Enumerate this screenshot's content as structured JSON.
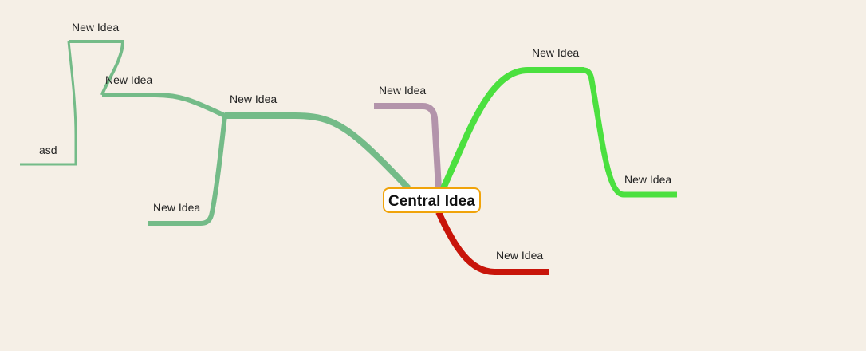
{
  "central": {
    "label": "Central Idea",
    "border_color": "#f0a30a"
  },
  "colors": {
    "background": "#f5efe6",
    "branch_light_green": "#74bb88",
    "branch_purple": "#b394ab",
    "branch_bright_green": "#4be03f",
    "branch_red": "#c8150a"
  },
  "nodes": {
    "far_left": "asd",
    "top_left": "New Idea",
    "left_upper": "New Idea",
    "left_mid": "New Idea",
    "left_lower": "New Idea",
    "purple_top": "New Idea",
    "green_top": "New Idea",
    "green_right": "New Idea",
    "red_bottom": "New Idea"
  }
}
